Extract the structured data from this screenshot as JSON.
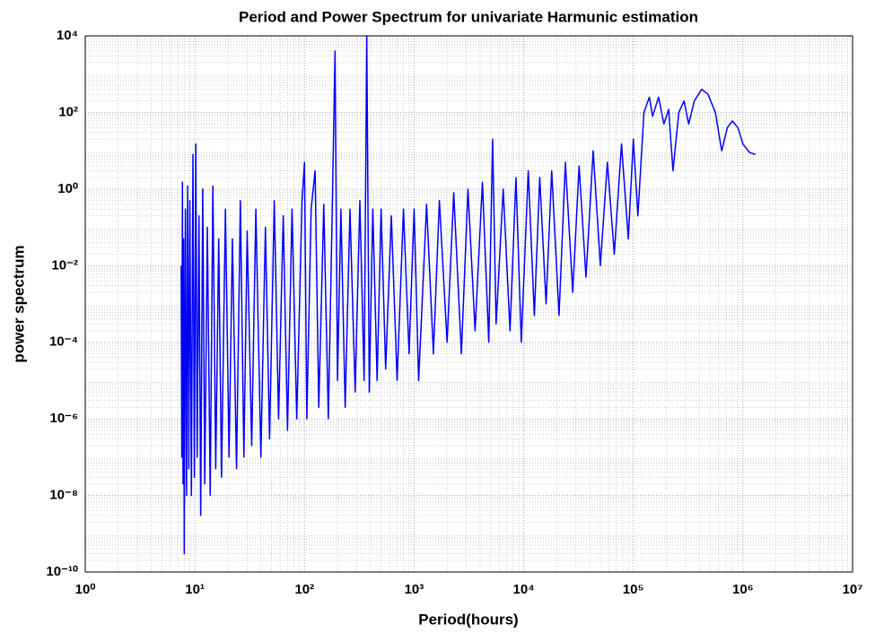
{
  "chart_data": {
    "type": "line",
    "title": "Period and Power Spectrum  for univariate Harmunic estimation",
    "xlabel": "Period(hours)",
    "ylabel": "power spectrum",
    "xscale": "log",
    "yscale": "log",
    "grid": true,
    "minor_grid": true,
    "xlim": [
      1,
      10000000
    ],
    "ylim": [
      1e-10,
      10000
    ],
    "xticks": [
      {
        "value": 1,
        "label": "10⁰"
      },
      {
        "value": 10,
        "label": "10¹"
      },
      {
        "value": 100,
        "label": "10²"
      },
      {
        "value": 1000,
        "label": "10³"
      },
      {
        "value": 10000,
        "label": "10⁴"
      },
      {
        "value": 100000,
        "label": "10⁵"
      },
      {
        "value": 1000000,
        "label": "10⁶"
      },
      {
        "value": 10000000,
        "label": "10⁷"
      }
    ],
    "yticks": [
      {
        "value": 1e-10,
        "label": "10⁻¹⁰"
      },
      {
        "value": 1e-08,
        "label": "10⁻⁸"
      },
      {
        "value": 1e-06,
        "label": "10⁻⁶"
      },
      {
        "value": 0.0001,
        "label": "10⁻⁴"
      },
      {
        "value": 0.01,
        "label": "10⁻²"
      },
      {
        "value": 1,
        "label": "10⁰"
      },
      {
        "value": 100,
        "label": "10²"
      },
      {
        "value": 10000,
        "label": "10⁴"
      }
    ],
    "series": [
      {
        "color": "#0000ff",
        "x": [
          7.5,
          7.6,
          7.7,
          7.8,
          7.9,
          8.0,
          8.2,
          8.4,
          8.6,
          8.8,
          9.0,
          9.3,
          9.6,
          9.9,
          10.2,
          10.5,
          10.9,
          11.3,
          11.8,
          12.3,
          13,
          13.8,
          14.6,
          15.5,
          16.5,
          17.5,
          19,
          20.5,
          22,
          24,
          26,
          28,
          30,
          33,
          36,
          40,
          44,
          48,
          53,
          58,
          64,
          70,
          77,
          85,
          95,
          100,
          105,
          115,
          125,
          135,
          150,
          165,
          180,
          190,
          200,
          215,
          235,
          260,
          290,
          320,
          350,
          370,
          390,
          420,
          460,
          500,
          550,
          620,
          700,
          800,
          900,
          1000,
          1100,
          1300,
          1500,
          1700,
          2000,
          2300,
          2700,
          3100,
          3600,
          4200,
          4800,
          5200,
          5600,
          6500,
          7500,
          8500,
          9500,
          11000,
          12500,
          14000,
          16000,
          18000,
          21000,
          24000,
          28000,
          32000,
          37000,
          43000,
          50000,
          58000,
          67000,
          78000,
          90000,
          100000,
          110000,
          125000,
          140000,
          150000,
          170000,
          190000,
          210000,
          230000,
          260000,
          290000,
          320000,
          360000,
          420000,
          480000,
          560000,
          640000,
          720000,
          800000,
          900000,
          1000000,
          1150000,
          1300000
        ],
        "values": [
          0.01,
          1e-07,
          1.5,
          2e-08,
          0.05,
          3e-10,
          0.3,
          1e-08,
          1.2,
          5e-08,
          0.5,
          1e-08,
          8,
          3e-08,
          15,
          1e-07,
          0.2,
          3e-09,
          1,
          2e-08,
          0.1,
          1e-08,
          1.2,
          5e-08,
          0.05,
          3e-08,
          0.3,
          1e-07,
          0.05,
          5e-08,
          0.5,
          1e-07,
          0.08,
          2e-07,
          0.3,
          1e-07,
          0.1,
          3e-07,
          0.5,
          1e-06,
          0.2,
          5e-07,
          0.3,
          1e-06,
          0.5,
          5,
          1e-06,
          0.3,
          3,
          2e-06,
          0.4,
          1e-06,
          0.6,
          4000,
          1e-05,
          0.3,
          2e-06,
          0.3,
          5e-06,
          0.5,
          1e-05,
          10000,
          5e-06,
          0.3,
          1e-05,
          0.3,
          2e-05,
          0.2,
          1e-05,
          0.3,
          5e-05,
          0.3,
          1e-05,
          0.4,
          5e-05,
          0.5,
          0.0001,
          0.8,
          5e-05,
          1,
          0.0002,
          1.5,
          0.0001,
          20,
          0.0003,
          1,
          0.0002,
          2,
          0.0001,
          3,
          0.0005,
          2,
          0.001,
          3,
          0.0005,
          5,
          0.002,
          4,
          0.005,
          10,
          0.01,
          5,
          0.02,
          15,
          0.05,
          20,
          0.2,
          100,
          250,
          80,
          250,
          50,
          120,
          3,
          100,
          200,
          50,
          200,
          400,
          300,
          100,
          10,
          40,
          60,
          40,
          15,
          9,
          8
        ]
      }
    ]
  }
}
